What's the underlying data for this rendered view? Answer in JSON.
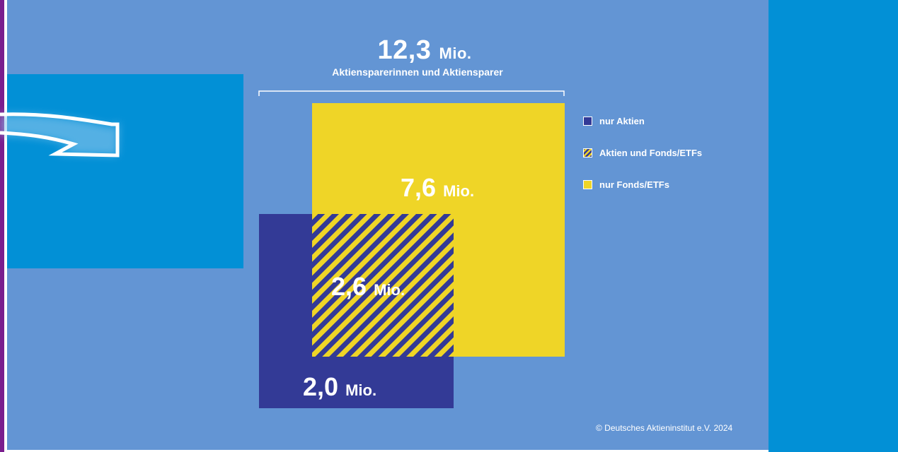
{
  "header": {
    "total_number": "12,3",
    "total_unit": "Mio.",
    "total_label": "Aktiensparerinnen und Aktiensparer"
  },
  "legend": [
    {
      "label": "nur Aktien",
      "color": "#333a96",
      "pattern": "solid"
    },
    {
      "label": "Aktien und Fonds/ETFs",
      "color": "#333a96",
      "pattern": "hatched"
    },
    {
      "label": "nur Fonds/ETFs",
      "color": "#efd527",
      "pattern": "solid"
    }
  ],
  "labels": {
    "funds_number": "7,6",
    "funds_unit": "Mio.",
    "both_number": "2,6",
    "both_unit": "Mio.",
    "stocks_number": "2,0",
    "stocks_unit": "Mio."
  },
  "copyright": "© Deutsches Aktieninstitut e.V. 2024",
  "colors": {
    "background": "#6395d4",
    "panel": "#0290d6",
    "stocks": "#333a96",
    "funds": "#efd527",
    "accent": "#7a1e8e"
  },
  "chart_data": {
    "type": "venn-squares",
    "total": 12.3,
    "unit": "Mio.",
    "title": "12,3 Mio. Aktiensparerinnen und Aktiensparer",
    "segments": [
      {
        "name": "nur Aktien",
        "value": 2.0
      },
      {
        "name": "Aktien und Fonds/ETFs",
        "value": 2.6
      },
      {
        "name": "nur Fonds/ETFs",
        "value": 7.6
      }
    ]
  }
}
